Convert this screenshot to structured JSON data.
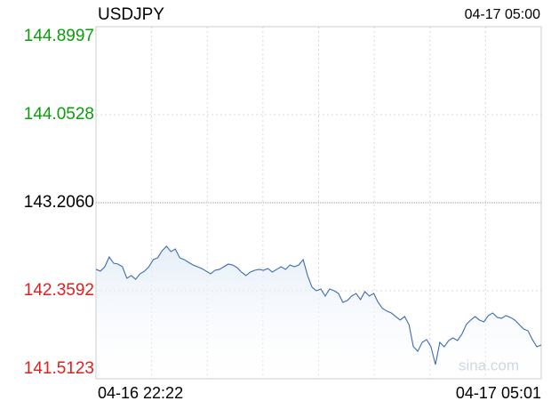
{
  "chart_data": {
    "type": "line",
    "title": "USDJPY",
    "timestamp": "04-17 05:00",
    "watermark": "sina.com",
    "categories": [
      "04-16 22:22",
      null,
      null,
      null,
      null,
      null,
      null,
      null,
      null,
      null,
      null,
      null,
      null,
      null,
      null,
      null,
      null,
      null,
      null,
      null,
      null,
      null,
      null,
      null,
      null,
      null,
      null,
      null,
      null,
      null,
      null,
      null,
      null,
      null,
      null,
      null,
      null,
      null,
      null,
      null,
      null,
      null,
      null,
      null,
      null,
      null,
      null,
      null,
      null,
      null,
      null,
      null,
      null,
      null,
      null,
      null,
      null,
      null,
      null,
      null,
      null,
      null,
      null,
      null,
      null,
      null,
      null,
      null,
      null,
      null,
      null,
      null,
      null,
      null,
      null,
      null,
      null,
      null,
      null,
      null,
      null,
      null,
      null,
      null,
      null,
      null,
      null,
      null,
      null,
      null,
      null,
      null,
      null,
      null,
      null,
      null,
      null,
      null,
      null,
      null,
      null,
      "04-17 05:01"
    ],
    "series": [
      {
        "name": "USDJPY",
        "color": "#3d6bb3",
        "values": [
          142.565,
          142.548,
          142.59,
          142.684,
          142.624,
          142.616,
          142.59,
          142.479,
          142.505,
          142.47,
          142.522,
          142.548,
          142.59,
          142.659,
          142.676,
          142.744,
          142.787,
          142.736,
          142.761,
          142.676,
          142.659,
          142.633,
          142.607,
          142.59,
          142.573,
          142.548,
          142.522,
          142.556,
          142.565,
          142.59,
          142.616,
          142.607,
          142.582,
          142.539,
          142.505,
          142.539,
          142.556,
          142.565,
          142.556,
          142.573,
          142.539,
          142.565,
          142.59,
          142.565,
          142.607,
          142.59,
          142.607,
          142.659,
          142.505,
          142.394,
          142.359,
          142.376,
          142.308,
          142.376,
          142.359,
          142.333,
          142.248,
          142.265,
          142.308,
          142.333,
          142.274,
          142.351,
          142.308,
          142.333,
          142.248,
          142.188,
          142.163,
          142.145,
          142.111,
          142.077,
          142.111,
          142.034,
          141.82,
          141.777,
          141.863,
          141.889,
          141.82,
          141.649,
          141.863,
          141.82,
          141.88,
          141.906,
          141.88,
          141.94,
          142.034,
          142.077,
          142.111,
          142.077,
          142.06,
          142.12,
          142.145,
          142.103,
          142.094,
          142.12,
          142.103,
          142.077,
          142.034,
          141.991,
          141.974,
          141.889,
          141.82,
          141.837
        ]
      }
    ],
    "ylim": [
      141.5123,
      144.8997
    ],
    "yticks": [
      141.5123,
      142.3592,
      {
        "value": 143.206,
        "label": "143.2060"
      },
      144.0528,
      144.8997
    ],
    "ytick_colors": [
      "#e0201e",
      "#e0201e",
      "#000000",
      "#0a9e0a",
      "#0a9e0a"
    ],
    "grid": true
  }
}
